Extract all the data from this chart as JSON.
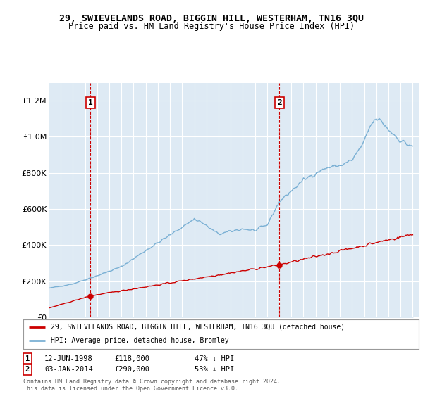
{
  "title": "29, SWIEVELANDS ROAD, BIGGIN HILL, WESTERHAM, TN16 3QU",
  "subtitle": "Price paid vs. HM Land Registry's House Price Index (HPI)",
  "legend_line1": "29, SWIEVELANDS ROAD, BIGGIN HILL, WESTERHAM, TN16 3QU (detached house)",
  "legend_line2": "HPI: Average price, detached house, Bromley",
  "footer": "Contains HM Land Registry data © Crown copyright and database right 2024.\nThis data is licensed under the Open Government Licence v3.0.",
  "sale1_date": "12-JUN-1998",
  "sale1_price": 118000,
  "sale1_hpi": "47% ↓ HPI",
  "sale1_year": 1998.45,
  "sale2_date": "03-JAN-2014",
  "sale2_price": 290000,
  "sale2_hpi": "53% ↓ HPI",
  "sale2_year": 2014.02,
  "red_color": "#cc0000",
  "blue_color": "#7ab0d4",
  "plot_bg": "#deeaf4",
  "fig_bg": "#ffffff",
  "ylim": [
    0,
    1300000
  ],
  "xmin": 1995,
  "xmax": 2025.5
}
